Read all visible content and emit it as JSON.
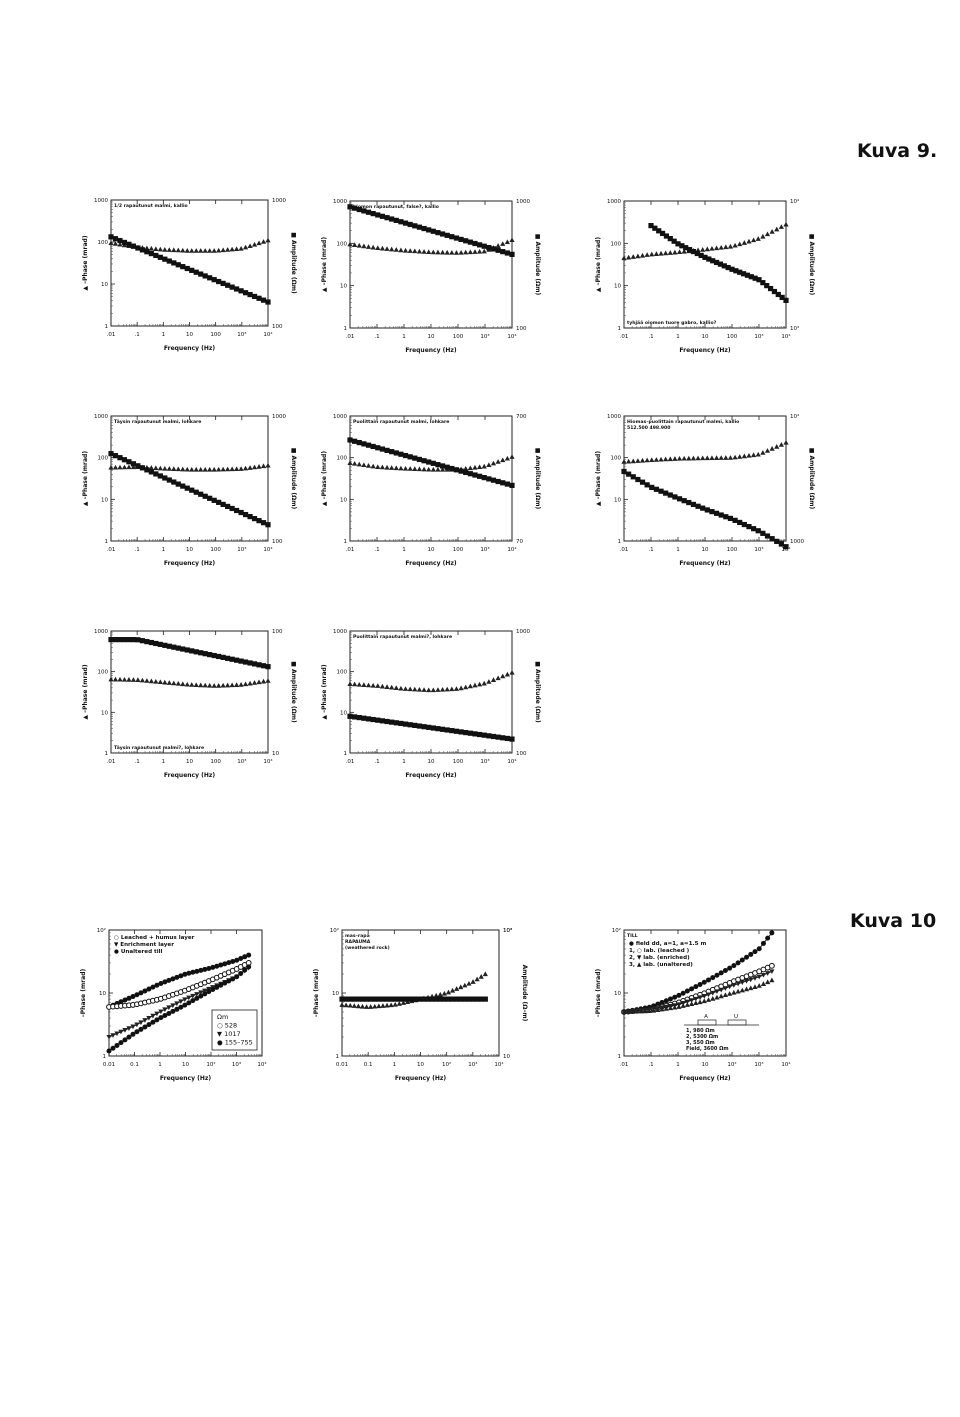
{
  "figure_labels": {
    "kuva9": "Kuva 9.",
    "kuva10": "Kuva 10"
  },
  "chart_data": [
    {
      "type": "scatter",
      "title": "1/2 rapautunut malmi, kallio",
      "title_pos": "top",
      "xlabel": "Frequency (Hz)",
      "ylabel": "▲ –Phase (mrad)",
      "y2label": "■ Amplitude (Ωm)",
      "xticks": [
        ".01",
        ".1",
        "1",
        "10",
        "100",
        "10³",
        "10⁴"
      ],
      "xlim": [
        0.01,
        10000
      ],
      "ylim": [
        1,
        1000
      ],
      "yticks": [
        "1",
        "10",
        "100",
        "1000"
      ],
      "y2lim": [
        100,
        1000
      ],
      "y2ticks": [
        "100",
        "1000"
      ],
      "series": [
        {
          "marker": "triangle",
          "axis": "left",
          "x": [
            0.01,
            0.1,
            1,
            10,
            100,
            1000,
            10000
          ],
          "y": [
            95,
            75,
            66,
            62,
            62,
            70,
            110
          ]
        },
        {
          "marker": "square",
          "axis": "right",
          "x": [
            0.01,
            10000
          ],
          "y": [
            510,
            155
          ]
        }
      ]
    },
    {
      "type": "scatter",
      "title": "hiomon rapautunut, false?, kallio",
      "title_pos": "top",
      "xlabel": "Frequency (Hz)",
      "ylabel": "▲ –Phase (mrad)",
      "y2label": "■ Amplitude (Ωm)",
      "xticks": [
        ".01",
        ".1",
        "1",
        "10",
        "100",
        "10³",
        "10⁴"
      ],
      "xlim": [
        0.01,
        10000
      ],
      "ylim": [
        1,
        1000
      ],
      "yticks": [
        "1",
        "10",
        "100",
        "1000"
      ],
      "y2lim": [
        100,
        1000
      ],
      "y2ticks": [
        "100",
        "1000"
      ],
      "series": [
        {
          "marker": "triangle",
          "axis": "left",
          "x": [
            0.01,
            0.1,
            1,
            10,
            100,
            1000,
            10000
          ],
          "y": [
            95,
            78,
            68,
            62,
            60,
            65,
            120
          ]
        },
        {
          "marker": "square",
          "axis": "right",
          "x": [
            0.01,
            10000
          ],
          "y": [
            900,
            380
          ]
        }
      ]
    },
    {
      "type": "scatter",
      "title": "tyhjää oiomon tuore gabro, kallio?",
      "title_pos": "bottom",
      "xlabel": "Frequency (Hz)",
      "ylabel": "▲ –Phase (mrad)",
      "y2label": "■ Amplitude (Ωm)",
      "xticks": [
        ".01",
        ".1",
        "1",
        "10",
        "100",
        "10³",
        "10⁴"
      ],
      "xlim": [
        0.01,
        10000
      ],
      "ylim": [
        1,
        1000
      ],
      "yticks": [
        "1",
        "10",
        "100",
        "1000"
      ],
      "y2lim": [
        1000,
        10000
      ],
      "y2ticks": [
        "10³",
        "10⁴"
      ],
      "series": [
        {
          "marker": "triangle",
          "axis": "left",
          "x": [
            0.01,
            0.1,
            1,
            10,
            100,
            1000,
            10000
          ],
          "y": [
            45,
            55,
            62,
            72,
            85,
            130,
            280
          ]
        },
        {
          "marker": "square",
          "axis": "right",
          "x": [
            0.1,
            1,
            10,
            100,
            1000,
            10000
          ],
          "y": [
            6400,
            4600,
            3600,
            2900,
            2400,
            1650
          ]
        }
      ]
    },
    {
      "type": "scatter",
      "title": "Täysin rapautunut malmi, lohkare",
      "title_pos": "top",
      "xlabel": "Frequency (Hz)",
      "ylabel": "▲ –Phase (mrad)",
      "y2label": "■ Amplitude (Ωm)",
      "xticks": [
        ".01",
        ".1",
        "1",
        "10",
        "100",
        "10³",
        "10⁴"
      ],
      "xlim": [
        0.01,
        10000
      ],
      "ylim": [
        1,
        1000
      ],
      "yticks": [
        "1",
        "10",
        "100",
        "1000"
      ],
      "y2lim": [
        100,
        1000
      ],
      "y2ticks": [
        "100",
        "1000"
      ],
      "series": [
        {
          "marker": "triangle",
          "axis": "left",
          "x": [
            0.01,
            0.1,
            1,
            10,
            100,
            1000,
            10000
          ],
          "y": [
            58,
            60,
            55,
            52,
            52,
            54,
            65
          ]
        },
        {
          "marker": "square",
          "axis": "right",
          "x": [
            0.01,
            10000
          ],
          "y": [
            500,
            135
          ]
        }
      ]
    },
    {
      "type": "scatter",
      "title": "Puolittain rapautunut malmi, lohkare",
      "title_pos": "top",
      "xlabel": "Frequency (Hz)",
      "ylabel": "▲ –Phase (mrad)",
      "y2label": "■ Amplitude (Ωm)",
      "xticks": [
        ".01",
        ".1",
        "1",
        "10",
        "100",
        "10³",
        "10⁴"
      ],
      "xlim": [
        0.01,
        10000
      ],
      "ylim": [
        1,
        1000
      ],
      "yticks": [
        "1",
        "10",
        "100",
        "1000"
      ],
      "y2lim": [
        70,
        700
      ],
      "y2ticks": [
        "70",
        "700"
      ],
      "series": [
        {
          "marker": "triangle",
          "axis": "left",
          "x": [
            0.01,
            0.1,
            1,
            10,
            100,
            1000,
            10000
          ],
          "y": [
            75,
            60,
            55,
            52,
            52,
            62,
            105
          ]
        },
        {
          "marker": "square",
          "axis": "right",
          "x": [
            0.01,
            10000
          ],
          "y": [
            450,
            195
          ]
        }
      ]
    },
    {
      "type": "scatter",
      "title": "Hiomas–puolittain rapautunut malmi, kallio\n512.500  498.900",
      "title_pos": "top",
      "xlabel": "Frequency (Hz)",
      "ylabel": "▲ –Phase (mrad)",
      "y2label": "■ Amplitude (Ωm)",
      "xticks": [
        ".01",
        ".1",
        "1",
        "10",
        "100",
        "10³",
        "10⁴"
      ],
      "xlim": [
        0.01,
        10000
      ],
      "ylim": [
        1,
        1000
      ],
      "yticks": [
        "1",
        "10",
        "100",
        "1000"
      ],
      "y2lim": [
        1000,
        10000
      ],
      "y2ticks": [
        "1000",
        "10⁴"
      ],
      "series": [
        {
          "marker": "triangle",
          "axis": "left",
          "x": [
            0.01,
            0.1,
            1,
            10,
            100,
            1000,
            10000
          ],
          "y": [
            80,
            88,
            95,
            98,
            100,
            120,
            230
          ]
        },
        {
          "marker": "square",
          "axis": "right",
          "x": [
            0.01,
            0.1,
            1,
            10,
            100,
            1000,
            10000
          ],
          "y": [
            3600,
            2700,
            2200,
            1800,
            1500,
            1200,
            900
          ]
        }
      ]
    },
    {
      "type": "scatter",
      "title": "Täysin rapautunut malmi?, lohkare",
      "title_pos": "bottom",
      "xlabel": "Frequency (Hz)",
      "ylabel": "▲ –Phase (mrad)",
      "y2label": "■ Amplitude (Ωm)",
      "xticks": [
        ".01",
        ".1",
        "1",
        "10",
        "100",
        "10³",
        "10⁴"
      ],
      "xlim": [
        0.01,
        10000
      ],
      "ylim": [
        1,
        1000
      ],
      "yticks": [
        "1",
        "10",
        "100",
        "1000"
      ],
      "y2lim": [
        10,
        100
      ],
      "y2ticks": [
        "10",
        "100"
      ],
      "series": [
        {
          "marker": "triangle",
          "axis": "left",
          "x": [
            0.01,
            0.1,
            1,
            10,
            100,
            1000,
            10000
          ],
          "y": [
            65,
            63,
            55,
            48,
            45,
            48,
            60
          ]
        },
        {
          "marker": "square",
          "axis": "right",
          "x": [
            0.01,
            0.1,
            10000
          ],
          "y": [
            85,
            85,
            51
          ]
        }
      ]
    },
    {
      "type": "scatter",
      "title": "Puolittain rapautunut malmi?, lohkare",
      "title_pos": "top",
      "xlabel": "Frequency (Hz)",
      "ylabel": "▲ –Phase (mrad)",
      "y2label": "■ Amplitude (Ωm)",
      "xticks": [
        ".01",
        ".1",
        "1",
        "10",
        "100",
        "10³",
        "10⁴"
      ],
      "xlim": [
        0.01,
        10000
      ],
      "ylim": [
        1,
        1000
      ],
      "yticks": [
        "1",
        "10",
        "100",
        "1000"
      ],
      "y2lim": [
        100,
        1000
      ],
      "y2ticks": [
        "100",
        "1000"
      ],
      "series": [
        {
          "marker": "triangle",
          "axis": "left",
          "x": [
            0.01,
            0.1,
            1,
            10,
            100,
            1000,
            10000
          ],
          "y": [
            50,
            45,
            38,
            35,
            38,
            52,
            95
          ]
        },
        {
          "marker": "square",
          "axis": "right",
          "x": [
            0.01,
            10000
          ],
          "y": [
            200,
            130
          ]
        }
      ]
    },
    {
      "type": "scatter",
      "title": "",
      "xlabel": "Frequency (Hz)",
      "ylabel": "–Phase (mrad)",
      "y2label": "",
      "xticks": [
        "0.01",
        "0.1",
        "1",
        "10",
        "10²",
        "10³",
        "10⁴"
      ],
      "xlim": [
        0.01,
        10000
      ],
      "ylim": [
        1,
        100
      ],
      "yticks": [
        "1",
        "10",
        "10²"
      ],
      "legend": [
        "○ Leached + humus layer",
        "▼ Enrichment layer",
        "● Unaltered till"
      ],
      "legend_box": [
        "Ωm",
        "○ 528",
        "▼ 1017",
        "● 155–755"
      ],
      "series": [
        {
          "marker": "filled-circle",
          "axis": "left",
          "x": [
            0.01,
            0.1,
            1,
            10,
            100,
            1000,
            3000
          ],
          "y": [
            6,
            9,
            14,
            20,
            25,
            33,
            40
          ]
        },
        {
          "marker": "open-circle",
          "axis": "left",
          "x": [
            0.01,
            0.1,
            1,
            10,
            100,
            1000,
            3000
          ],
          "y": [
            6,
            6.5,
            8,
            11,
            16,
            24,
            30
          ]
        },
        {
          "marker": "down-triangle",
          "axis": "left",
          "x": [
            0.01,
            0.1,
            1,
            10,
            100,
            1000,
            3000
          ],
          "y": [
            2,
            3,
            5,
            8,
            12,
            18,
            25
          ]
        },
        {
          "marker": "filled-circle",
          "axis": "left",
          "x": [
            0.01,
            0.1,
            1,
            10,
            100,
            1000,
            3000
          ],
          "y": [
            1.2,
            2.3,
            4,
            6.5,
            11,
            18,
            26
          ]
        }
      ]
    },
    {
      "type": "scatter",
      "title": "mas–rapa\nRAPAUMA\n(weathered rock)",
      "title_pos": "top",
      "xlabel": "Frequency (Hz)",
      "ylabel": "–Phase (mrad)",
      "y2label": "Amplitude (Ω–m)",
      "xticks": [
        "0.01",
        "0.1",
        "1",
        "10",
        "10²",
        "10³",
        "10⁴"
      ],
      "xlim": [
        0.01,
        10000
      ],
      "ylim": [
        1,
        100
      ],
      "yticks": [
        "1",
        "10",
        "10²"
      ],
      "y2lim": [
        10,
        1000
      ],
      "y2ticks": [
        "10",
        "10²",
        "10³"
      ],
      "series": [
        {
          "marker": "triangle",
          "axis": "left",
          "x": [
            0.01,
            0.1,
            1,
            10,
            100,
            1000,
            3000
          ],
          "y": [
            6.5,
            6,
            6.5,
            8,
            10,
            15,
            20
          ]
        },
        {
          "marker": "square",
          "axis": "right",
          "x": [
            0.01,
            3000
          ],
          "y": [
            80,
            80
          ]
        }
      ]
    },
    {
      "type": "scatter",
      "title": "TILL",
      "title_pos": "top",
      "xlabel": "Frequency (Hz)",
      "ylabel": "–Phase (mrad)",
      "y2label": "",
      "xticks": [
        ".01",
        ".1",
        "1",
        "10",
        "10²",
        "10³",
        "10⁴"
      ],
      "xlim": [
        0.01,
        10000
      ],
      "ylim": [
        1,
        100
      ],
      "yticks": [
        "1",
        "10",
        "10²"
      ],
      "legend": [
        "● field dd, a=1, a=1.5 m",
        "1, ○ lab. (leached )",
        "2, ▼ lab. (enriched)",
        "3, ▲ lab. (unaltered)"
      ],
      "annotations": [
        "A",
        "U",
        "1, 980 Ωm",
        "2, 5300 Ωm",
        "3, 550 Ωm",
        "Field, 3600 Ωm"
      ],
      "series": [
        {
          "marker": "filled-circle",
          "axis": "left",
          "x": [
            0.01,
            0.1,
            1,
            10,
            100,
            1000,
            3000
          ],
          "y": [
            5,
            6,
            9,
            15,
            26,
            50,
            90
          ]
        },
        {
          "marker": "open-circle",
          "axis": "left",
          "x": [
            0.01,
            0.1,
            1,
            10,
            100,
            1000,
            3000
          ],
          "y": [
            5,
            5.5,
            7,
            10,
            15,
            22,
            27
          ]
        },
        {
          "marker": "down-triangle",
          "axis": "left",
          "x": [
            0.01,
            0.1,
            1,
            10,
            100,
            1000,
            3000
          ],
          "y": [
            5,
            5.5,
            6.5,
            9,
            13,
            18,
            22
          ]
        },
        {
          "marker": "triangle",
          "axis": "left",
          "x": [
            0.01,
            0.1,
            1,
            10,
            100,
            1000,
            3000
          ],
          "y": [
            5,
            5.2,
            6,
            7.5,
            10,
            13,
            16
          ]
        }
      ]
    }
  ]
}
